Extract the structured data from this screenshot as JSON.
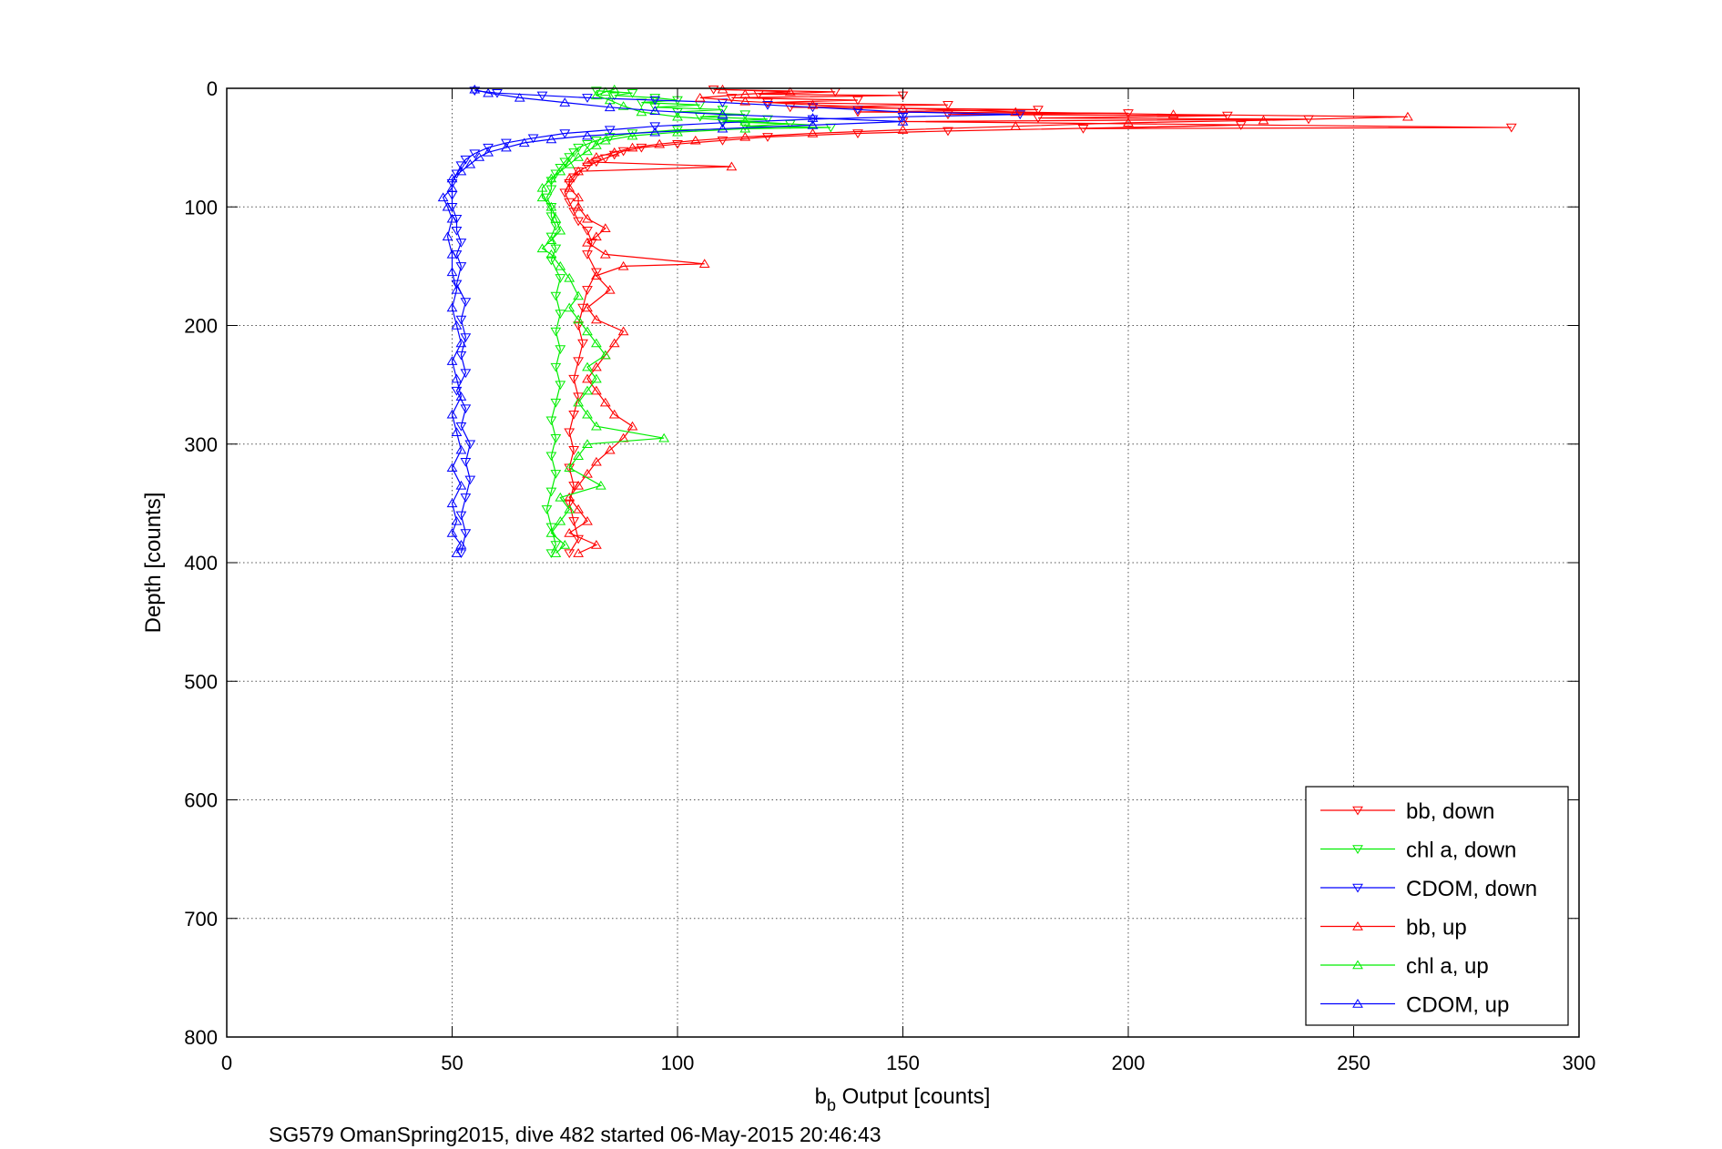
{
  "chart_data": {
    "type": "line",
    "xlabel_main": "b",
    "xlabel_sub": "b",
    "xlabel_rest": " Output [counts]",
    "ylabel": "Depth [counts]",
    "caption": "SG579 OmanSpring2015, dive 482 started 06-May-2015 20:46:43",
    "xlim": [
      0,
      300
    ],
    "ylim": [
      0,
      800
    ],
    "y_reversed": true,
    "grid": true,
    "legend_position": "bottom-right",
    "x_ticks": [
      "0",
      "50",
      "100",
      "150",
      "200",
      "250",
      "300"
    ],
    "y_ticks": [
      "0",
      "100",
      "200",
      "300",
      "400",
      "500",
      "600",
      "700",
      "800"
    ],
    "series": [
      {
        "name": "bb, down",
        "color": "#ff0000",
        "marker": "triangle-down",
        "points": [
          [
            108,
            1
          ],
          [
            135,
            3
          ],
          [
            118,
            5
          ],
          [
            150,
            6
          ],
          [
            112,
            8
          ],
          [
            140,
            10
          ],
          [
            120,
            12
          ],
          [
            160,
            14
          ],
          [
            125,
            16
          ],
          [
            180,
            18
          ],
          [
            140,
            20
          ],
          [
            200,
            21
          ],
          [
            160,
            22
          ],
          [
            222,
            23
          ],
          [
            180,
            25
          ],
          [
            240,
            26
          ],
          [
            150,
            28
          ],
          [
            285,
            33
          ],
          [
            190,
            34
          ],
          [
            225,
            31
          ],
          [
            160,
            36
          ],
          [
            140,
            38
          ],
          [
            120,
            41
          ],
          [
            110,
            44
          ],
          [
            100,
            47
          ],
          [
            92,
            50
          ],
          [
            88,
            53
          ],
          [
            86,
            56
          ],
          [
            84,
            59
          ],
          [
            82,
            62
          ],
          [
            80,
            66
          ],
          [
            78,
            70
          ],
          [
            77,
            75
          ],
          [
            76,
            80
          ],
          [
            75,
            88
          ],
          [
            76,
            96
          ],
          [
            77,
            104
          ],
          [
            78,
            112
          ],
          [
            80,
            120
          ],
          [
            81,
            130
          ],
          [
            80,
            140
          ],
          [
            82,
            155
          ],
          [
            80,
            170
          ],
          [
            79,
            185
          ],
          [
            78,
            200
          ],
          [
            79,
            215
          ],
          [
            78,
            230
          ],
          [
            77,
            245
          ],
          [
            78,
            260
          ],
          [
            77,
            275
          ],
          [
            76,
            290
          ],
          [
            77,
            305
          ],
          [
            76,
            320
          ],
          [
            77,
            335
          ],
          [
            76,
            350
          ],
          [
            77,
            365
          ],
          [
            78,
            380
          ],
          [
            76,
            392
          ]
        ]
      },
      {
        "name": "chl a, down",
        "color": "#00ee00",
        "marker": "triangle-down",
        "points": [
          [
            82,
            2
          ],
          [
            90,
            4
          ],
          [
            86,
            6
          ],
          [
            95,
            8
          ],
          [
            100,
            10
          ],
          [
            92,
            12
          ],
          [
            105,
            14
          ],
          [
            95,
            16
          ],
          [
            110,
            18
          ],
          [
            100,
            20
          ],
          [
            115,
            22
          ],
          [
            105,
            24
          ],
          [
            120,
            26
          ],
          [
            110,
            28
          ],
          [
            125,
            30
          ],
          [
            115,
            32
          ],
          [
            134,
            33
          ],
          [
            100,
            35
          ],
          [
            90,
            38
          ],
          [
            85,
            41
          ],
          [
            82,
            44
          ],
          [
            80,
            47
          ],
          [
            78,
            50
          ],
          [
            77,
            54
          ],
          [
            76,
            58
          ],
          [
            75,
            62
          ],
          [
            74,
            67
          ],
          [
            73,
            72
          ],
          [
            72,
            78
          ],
          [
            72,
            85
          ],
          [
            71,
            92
          ],
          [
            72,
            100
          ],
          [
            72,
            108
          ],
          [
            73,
            116
          ],
          [
            72,
            125
          ],
          [
            73,
            135
          ],
          [
            72,
            145
          ],
          [
            74,
            160
          ],
          [
            73,
            175
          ],
          [
            74,
            190
          ],
          [
            73,
            205
          ],
          [
            74,
            220
          ],
          [
            73,
            235
          ],
          [
            74,
            250
          ],
          [
            73,
            265
          ],
          [
            72,
            280
          ],
          [
            73,
            295
          ],
          [
            72,
            310
          ],
          [
            73,
            325
          ],
          [
            72,
            340
          ],
          [
            71,
            355
          ],
          [
            72,
            370
          ],
          [
            73,
            385
          ],
          [
            72,
            392
          ]
        ]
      },
      {
        "name": "CDOM, down",
        "color": "#0000ff",
        "marker": "triangle-down",
        "points": [
          [
            55,
            2
          ],
          [
            60,
            4
          ],
          [
            70,
            6
          ],
          [
            80,
            8
          ],
          [
            95,
            10
          ],
          [
            110,
            12
          ],
          [
            120,
            14
          ],
          [
            130,
            16
          ],
          [
            140,
            18
          ],
          [
            150,
            20
          ],
          [
            176,
            22
          ],
          [
            150,
            24
          ],
          [
            130,
            26
          ],
          [
            110,
            29
          ],
          [
            95,
            32
          ],
          [
            85,
            35
          ],
          [
            75,
            38
          ],
          [
            68,
            42
          ],
          [
            62,
            46
          ],
          [
            58,
            50
          ],
          [
            55,
            55
          ],
          [
            53,
            60
          ],
          [
            52,
            65
          ],
          [
            51,
            72
          ],
          [
            50,
            80
          ],
          [
            50,
            90
          ],
          [
            50,
            100
          ],
          [
            51,
            110
          ],
          [
            51,
            120
          ],
          [
            52,
            130
          ],
          [
            51,
            140
          ],
          [
            52,
            150
          ],
          [
            51,
            165
          ],
          [
            53,
            180
          ],
          [
            52,
            195
          ],
          [
            53,
            210
          ],
          [
            52,
            225
          ],
          [
            53,
            240
          ],
          [
            51,
            255
          ],
          [
            53,
            270
          ],
          [
            52,
            285
          ],
          [
            54,
            300
          ],
          [
            53,
            315
          ],
          [
            54,
            330
          ],
          [
            53,
            345
          ],
          [
            52,
            360
          ],
          [
            53,
            375
          ],
          [
            52,
            392
          ]
        ]
      },
      {
        "name": "bb, up",
        "color": "#ff0000",
        "marker": "triangle-up",
        "points": [
          [
            78,
            392
          ],
          [
            82,
            385
          ],
          [
            76,
            375
          ],
          [
            80,
            365
          ],
          [
            78,
            355
          ],
          [
            76,
            345
          ],
          [
            78,
            335
          ],
          [
            80,
            325
          ],
          [
            82,
            315
          ],
          [
            85,
            305
          ],
          [
            88,
            295
          ],
          [
            90,
            285
          ],
          [
            86,
            275
          ],
          [
            84,
            265
          ],
          [
            82,
            255
          ],
          [
            80,
            245
          ],
          [
            82,
            235
          ],
          [
            84,
            225
          ],
          [
            86,
            215
          ],
          [
            88,
            205
          ],
          [
            82,
            195
          ],
          [
            80,
            185
          ],
          [
            85,
            170
          ],
          [
            82,
            158
          ],
          [
            88,
            150
          ],
          [
            106,
            148
          ],
          [
            84,
            140
          ],
          [
            80,
            130
          ],
          [
            82,
            125
          ],
          [
            84,
            118
          ],
          [
            80,
            110
          ],
          [
            78,
            100
          ],
          [
            78,
            92
          ],
          [
            76,
            84
          ],
          [
            76,
            76
          ],
          [
            78,
            70
          ],
          [
            112,
            66
          ],
          [
            80,
            62
          ],
          [
            82,
            58
          ],
          [
            86,
            54
          ],
          [
            90,
            50
          ],
          [
            96,
            47
          ],
          [
            104,
            44
          ],
          [
            115,
            41
          ],
          [
            130,
            38
          ],
          [
            150,
            35
          ],
          [
            175,
            32
          ],
          [
            200,
            29
          ],
          [
            230,
            27
          ],
          [
            262,
            24
          ],
          [
            210,
            22
          ],
          [
            175,
            20
          ],
          [
            150,
            17
          ],
          [
            130,
            14
          ],
          [
            115,
            11
          ],
          [
            105,
            8
          ],
          [
            115,
            5
          ],
          [
            125,
            3
          ],
          [
            110,
            1
          ]
        ]
      },
      {
        "name": "chl a, up",
        "color": "#00ee00",
        "marker": "triangle-up",
        "points": [
          [
            73,
            392
          ],
          [
            75,
            385
          ],
          [
            72,
            375
          ],
          [
            74,
            365
          ],
          [
            76,
            355
          ],
          [
            74,
            345
          ],
          [
            83,
            335
          ],
          [
            76,
            320
          ],
          [
            78,
            310
          ],
          [
            80,
            300
          ],
          [
            97,
            295
          ],
          [
            82,
            285
          ],
          [
            80,
            275
          ],
          [
            78,
            265
          ],
          [
            80,
            255
          ],
          [
            82,
            245
          ],
          [
            80,
            235
          ],
          [
            84,
            225
          ],
          [
            82,
            215
          ],
          [
            80,
            205
          ],
          [
            78,
            195
          ],
          [
            76,
            185
          ],
          [
            78,
            175
          ],
          [
            76,
            160
          ],
          [
            74,
            150
          ],
          [
            72,
            140
          ],
          [
            70,
            135
          ],
          [
            72,
            128
          ],
          [
            74,
            120
          ],
          [
            73,
            110
          ],
          [
            72,
            100
          ],
          [
            70,
            92
          ],
          [
            70,
            84
          ],
          [
            72,
            76
          ],
          [
            74,
            70
          ],
          [
            76,
            64
          ],
          [
            78,
            58
          ],
          [
            80,
            53
          ],
          [
            82,
            48
          ],
          [
            84,
            44
          ],
          [
            90,
            40
          ],
          [
            100,
            37
          ],
          [
            115,
            34
          ],
          [
            130,
            31
          ],
          [
            115,
            28
          ],
          [
            100,
            24
          ],
          [
            92,
            20
          ],
          [
            88,
            15
          ],
          [
            85,
            10
          ],
          [
            82,
            6
          ],
          [
            84,
            3
          ],
          [
            86,
            1
          ]
        ]
      },
      {
        "name": "CDOM, up",
        "color": "#0000ff",
        "marker": "triangle-up",
        "points": [
          [
            51,
            392
          ],
          [
            52,
            385
          ],
          [
            50,
            375
          ],
          [
            51,
            365
          ],
          [
            50,
            350
          ],
          [
            52,
            335
          ],
          [
            50,
            320
          ],
          [
            52,
            305
          ],
          [
            51,
            290
          ],
          [
            50,
            275
          ],
          [
            52,
            260
          ],
          [
            51,
            245
          ],
          [
            50,
            230
          ],
          [
            52,
            215
          ],
          [
            51,
            200
          ],
          [
            50,
            185
          ],
          [
            51,
            170
          ],
          [
            50,
            155
          ],
          [
            50,
            140
          ],
          [
            49,
            125
          ],
          [
            50,
            110
          ],
          [
            49,
            100
          ],
          [
            48,
            92
          ],
          [
            50,
            84
          ],
          [
            50,
            76
          ],
          [
            52,
            70
          ],
          [
            54,
            64
          ],
          [
            56,
            58
          ],
          [
            58,
            54
          ],
          [
            62,
            50
          ],
          [
            66,
            46
          ],
          [
            72,
            43
          ],
          [
            80,
            40
          ],
          [
            95,
            37
          ],
          [
            110,
            34
          ],
          [
            130,
            31
          ],
          [
            150,
            28
          ],
          [
            130,
            25
          ],
          [
            110,
            22
          ],
          [
            95,
            19
          ],
          [
            85,
            16
          ],
          [
            75,
            12
          ],
          [
            65,
            8
          ],
          [
            58,
            4
          ],
          [
            55,
            1
          ]
        ]
      }
    ]
  }
}
